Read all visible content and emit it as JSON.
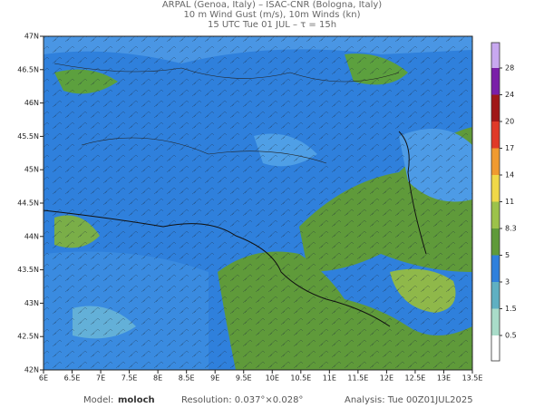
{
  "header": {
    "lines": [
      "ARPAL (Genoa, Italy)  –  ISAC-CNR (Bologna, Italy)",
      "10 m Wind Gust (m/s), 10m Winds (kn)",
      "15 UTC Tue 01 JUL  –  τ = 15h"
    ]
  },
  "map": {
    "lon_labels": [
      "6E",
      "6.5E",
      "7E",
      "7.5E",
      "8E",
      "8.5E",
      "9E",
      "9.5E",
      "10E",
      "10.5E",
      "11E",
      "11.5E",
      "12E",
      "12.5E",
      "13E",
      "13.5E"
    ],
    "lat_labels": [
      "42N",
      "42.5N",
      "43N",
      "43.5N",
      "44N",
      "44.5N",
      "45N",
      "45.5N",
      "46N",
      "46.5N",
      "47N"
    ]
  },
  "colorbar": {
    "labels": [
      "0.5",
      "1.5",
      "3",
      "5",
      "8.3",
      "11",
      "14",
      "17",
      "20",
      "24",
      "28"
    ]
  },
  "footer": {
    "model_label": "Model:",
    "model": "moloch",
    "resolution": "Resolution: 0.037°×0.028°",
    "analysis": "Analysis: Tue 00Z01JUL2025"
  }
}
